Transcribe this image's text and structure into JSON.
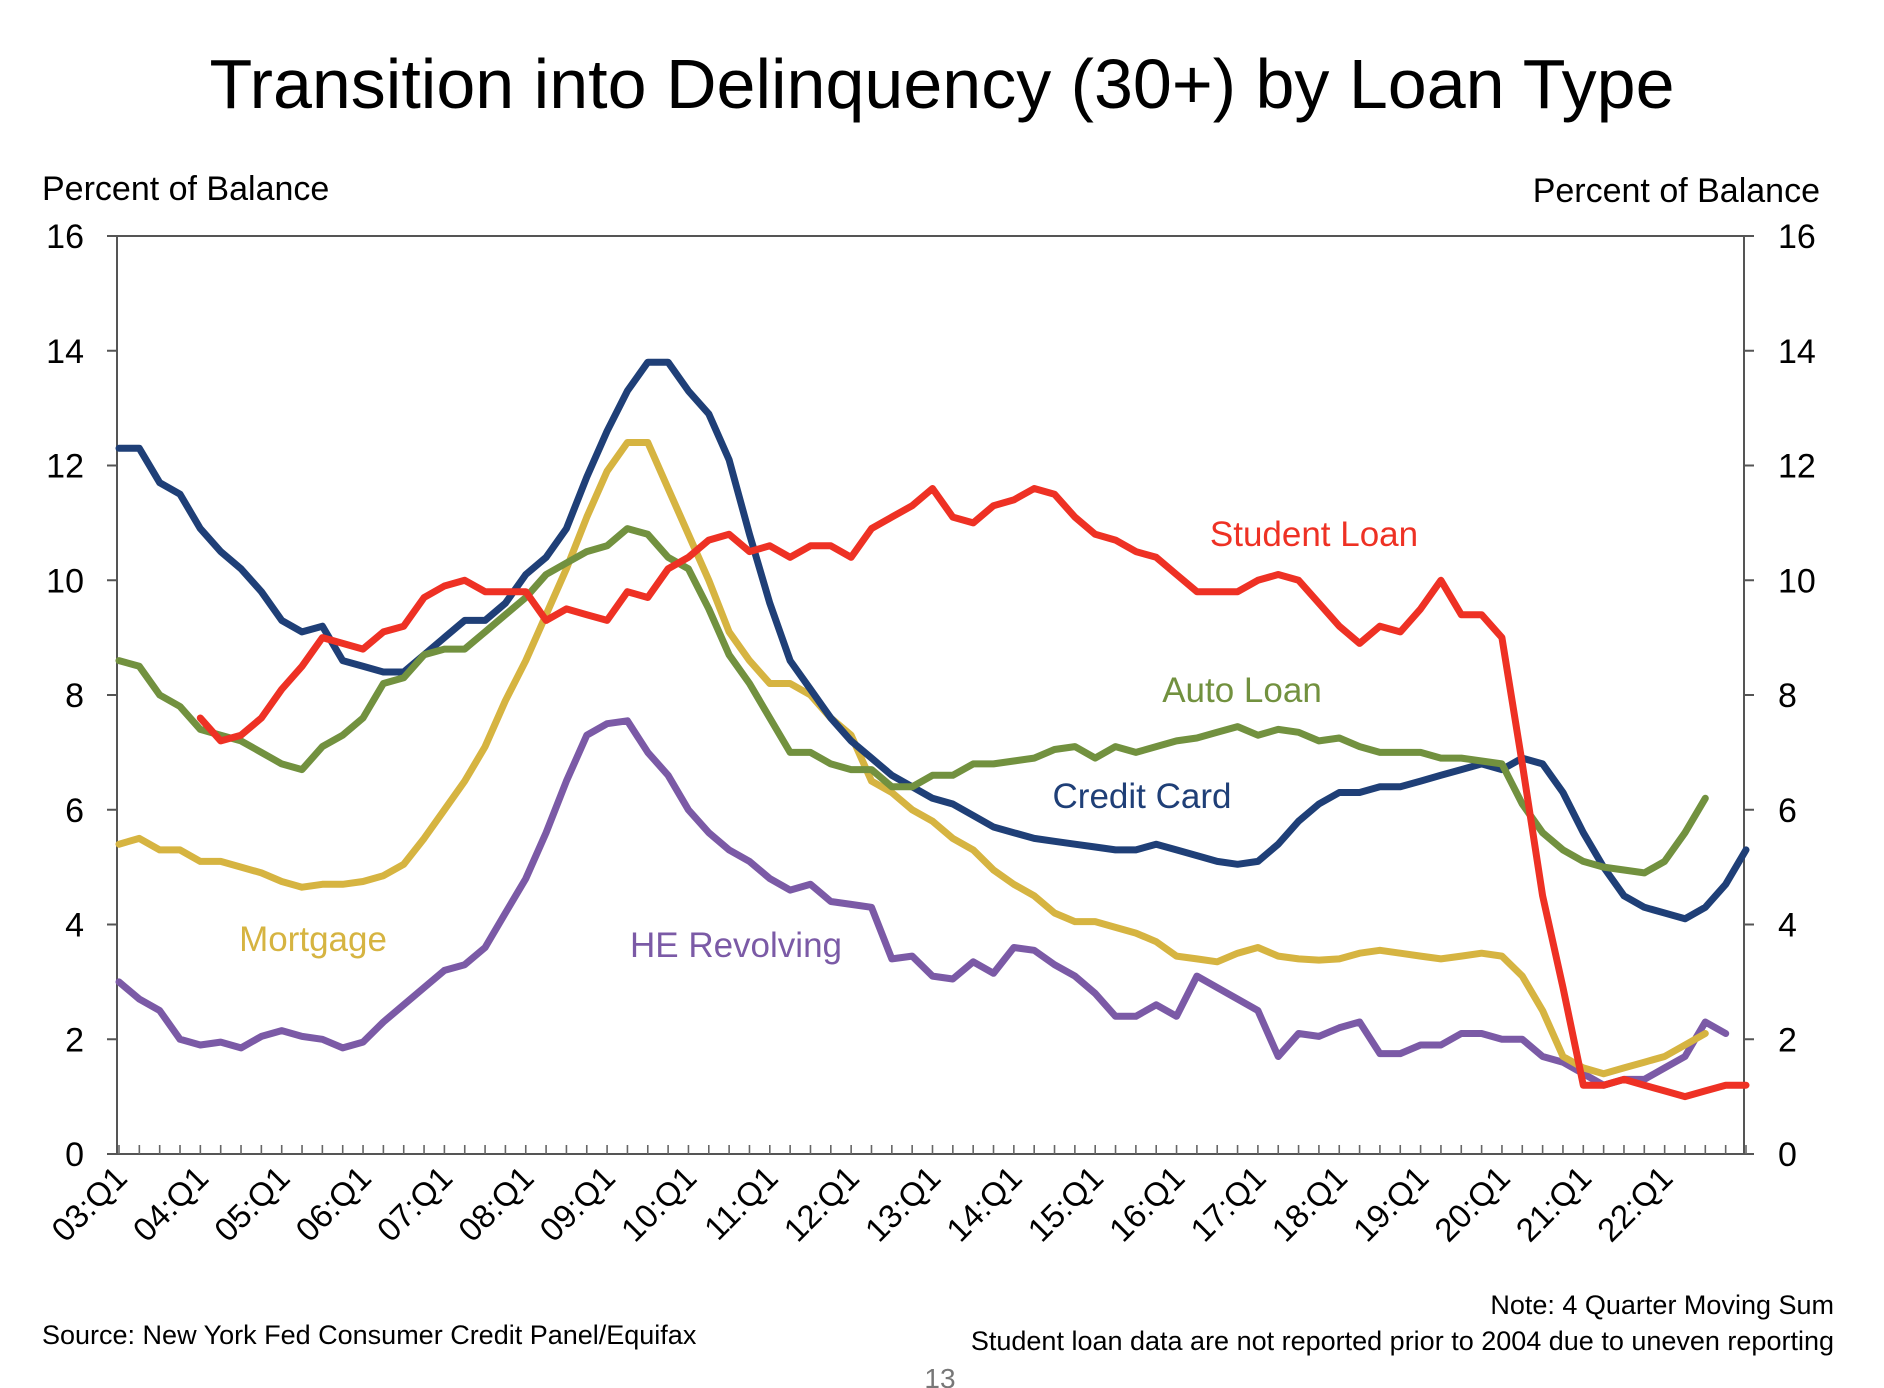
{
  "chart_data": {
    "type": "line",
    "title": "Transition into Delinquency (30+) by Loan Type",
    "ylabel_left": "Percent of Balance",
    "ylabel_right": "Percent of Balance",
    "ylim": [
      0,
      16
    ],
    "yticks": [
      "0",
      "2",
      "4",
      "6",
      "8",
      "10",
      "12",
      "14",
      "16"
    ],
    "x_start": "03:Q1",
    "x_count": 80,
    "x_tick_labels": [
      "03:Q1",
      "04:Q1",
      "05:Q1",
      "06:Q1",
      "07:Q1",
      "08:Q1",
      "09:Q1",
      "10:Q1",
      "11:Q1",
      "12:Q1",
      "13:Q1",
      "14:Q1",
      "15:Q1",
      "16:Q1",
      "17:Q1",
      "18:Q1",
      "19:Q1",
      "20:Q1",
      "21:Q1",
      "22:Q1"
    ],
    "series": [
      {
        "name": "Student Loan",
        "label": "Student Loan",
        "color": "#ee3124",
        "start_index": 4,
        "values": [
          7.6,
          7.2,
          7.3,
          7.6,
          8.1,
          8.5,
          9.0,
          8.9,
          8.8,
          9.1,
          9.2,
          9.7,
          9.9,
          10.0,
          9.8,
          9.8,
          9.8,
          9.3,
          9.5,
          9.4,
          9.3,
          9.8,
          9.7,
          10.2,
          10.4,
          10.7,
          10.8,
          10.5,
          10.6,
          10.4,
          10.6,
          10.6,
          10.4,
          10.9,
          11.1,
          11.3,
          11.6,
          11.1,
          11.0,
          11.3,
          11.4,
          11.6,
          11.5,
          11.1,
          10.8,
          10.7,
          10.5,
          10.4,
          10.1,
          9.8,
          9.8,
          9.8,
          10.0,
          10.1,
          10.0,
          9.6,
          9.2,
          8.9,
          9.2,
          9.1,
          9.5,
          10.0,
          9.4,
          9.4,
          9.0,
          6.8,
          4.5,
          2.9,
          1.2,
          1.2,
          1.3,
          1.2,
          1.1,
          1.0,
          1.1,
          1.2,
          1.2
        ]
      },
      {
        "name": "Credit Card",
        "label": "Credit Card",
        "color": "#1f3f77",
        "start_index": 0,
        "values": [
          12.3,
          12.3,
          11.7,
          11.5,
          10.9,
          10.5,
          10.2,
          9.8,
          9.3,
          9.1,
          9.2,
          8.6,
          8.5,
          8.4,
          8.4,
          8.7,
          9.0,
          9.3,
          9.3,
          9.6,
          10.1,
          10.4,
          10.9,
          11.8,
          12.6,
          13.3,
          13.8,
          13.8,
          13.3,
          12.9,
          12.1,
          10.8,
          9.6,
          8.6,
          8.1,
          7.6,
          7.2,
          6.9,
          6.6,
          6.4,
          6.2,
          6.1,
          5.9,
          5.7,
          5.6,
          5.5,
          5.45,
          5.4,
          5.35,
          5.3,
          5.3,
          5.4,
          5.3,
          5.2,
          5.1,
          5.05,
          5.1,
          5.4,
          5.8,
          6.1,
          6.3,
          6.3,
          6.4,
          6.4,
          6.5,
          6.6,
          6.7,
          6.8,
          6.7,
          6.9,
          6.8,
          6.3,
          5.6,
          5.0,
          4.5,
          4.3,
          4.2,
          4.1,
          4.3,
          4.7,
          5.3
        ]
      },
      {
        "name": "Auto Loan",
        "label": "Auto Loan",
        "color": "#72913f",
        "start_index": 0,
        "values": [
          8.6,
          8.5,
          8.0,
          7.8,
          7.4,
          7.3,
          7.2,
          7.0,
          6.8,
          6.7,
          7.1,
          7.3,
          7.6,
          8.2,
          8.3,
          8.7,
          8.8,
          8.8,
          9.1,
          9.4,
          9.7,
          10.1,
          10.3,
          10.5,
          10.6,
          10.9,
          10.8,
          10.4,
          10.2,
          9.5,
          8.7,
          8.2,
          7.6,
          7.0,
          7.0,
          6.8,
          6.7,
          6.7,
          6.4,
          6.4,
          6.6,
          6.6,
          6.8,
          6.8,
          6.85,
          6.9,
          7.05,
          7.1,
          6.9,
          7.1,
          7.0,
          7.1,
          7.2,
          7.25,
          7.35,
          7.45,
          7.3,
          7.4,
          7.35,
          7.2,
          7.25,
          7.1,
          7.0,
          7.0,
          7.0,
          6.9,
          6.9,
          6.85,
          6.8,
          6.1,
          5.6,
          5.3,
          5.1,
          5.0,
          4.95,
          4.9,
          5.1,
          5.6,
          6.2
        ]
      },
      {
        "name": "Mortgage",
        "label": "Mortgage",
        "color": "#d6b441",
        "start_index": 0,
        "values": [
          5.4,
          5.5,
          5.3,
          5.3,
          5.1,
          5.1,
          5.0,
          4.9,
          4.75,
          4.65,
          4.7,
          4.7,
          4.75,
          4.85,
          5.05,
          5.5,
          6.0,
          6.5,
          7.1,
          7.9,
          8.6,
          9.4,
          10.2,
          11.1,
          11.9,
          12.4,
          12.4,
          11.6,
          10.8,
          10.0,
          9.1,
          8.6,
          8.2,
          8.2,
          8.0,
          7.6,
          7.3,
          6.5,
          6.3,
          6.0,
          5.8,
          5.5,
          5.3,
          4.95,
          4.7,
          4.5,
          4.2,
          4.05,
          4.05,
          3.95,
          3.85,
          3.7,
          3.45,
          3.4,
          3.35,
          3.5,
          3.6,
          3.45,
          3.4,
          3.38,
          3.4,
          3.5,
          3.55,
          3.5,
          3.45,
          3.4,
          3.45,
          3.5,
          3.45,
          3.1,
          2.5,
          1.7,
          1.5,
          1.4,
          1.5,
          1.6,
          1.7,
          1.9,
          2.1
        ]
      },
      {
        "name": "HE Revolving",
        "label": "HE Revolving",
        "color": "#7b5aa6",
        "start_index": 0,
        "values": [
          3.0,
          2.7,
          2.5,
          2.0,
          1.9,
          1.95,
          1.85,
          2.05,
          2.15,
          2.05,
          2.0,
          1.85,
          1.95,
          2.3,
          2.6,
          2.9,
          3.2,
          3.3,
          3.6,
          4.2,
          4.8,
          5.6,
          6.5,
          7.3,
          7.5,
          7.55,
          7.0,
          6.6,
          6.0,
          5.6,
          5.3,
          5.1,
          4.8,
          4.6,
          4.7,
          4.4,
          4.35,
          4.3,
          3.4,
          3.45,
          3.1,
          3.05,
          3.35,
          3.15,
          3.6,
          3.55,
          3.3,
          3.1,
          2.8,
          2.4,
          2.4,
          2.6,
          2.4,
          3.1,
          2.9,
          2.7,
          2.5,
          1.7,
          2.1,
          2.05,
          2.2,
          2.3,
          1.75,
          1.75,
          1.9,
          1.9,
          2.1,
          2.1,
          2.0,
          2.0,
          1.7,
          1.6,
          1.4,
          1.2,
          1.3,
          1.3,
          1.5,
          1.7,
          2.3,
          2.1
        ]
      }
    ],
    "source": "Source: New York Fed Consumer Credit Panel/Equifax",
    "note_line1": "Note: 4 Quarter Moving Sum",
    "note_line2": "Student loan data are not reported prior to 2004 due to uneven reporting",
    "page_number": "13"
  }
}
